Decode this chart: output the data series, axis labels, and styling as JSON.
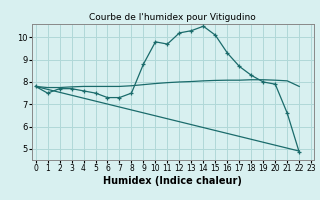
{
  "title": "Courbe de l'humidex pour Vitigudino",
  "xlabel": "Humidex (Indice chaleur)",
  "bg_color": "#d8f0f0",
  "line_color": "#1a6b6b",
  "grid_color": "#b0d8d8",
  "xlim": [
    -0.3,
    23.2
  ],
  "ylim": [
    4.5,
    10.6
  ],
  "xticks": [
    0,
    1,
    2,
    3,
    4,
    5,
    6,
    7,
    8,
    9,
    10,
    11,
    12,
    13,
    14,
    15,
    16,
    17,
    18,
    19,
    20,
    21,
    22,
    23
  ],
  "yticks": [
    5,
    6,
    7,
    8,
    9,
    10
  ],
  "series": [
    {
      "x": [
        0,
        1,
        2,
        3,
        4,
        5,
        6,
        7,
        8,
        9,
        10,
        11,
        12,
        13,
        14,
        15,
        16,
        17,
        18,
        19,
        20,
        21,
        22
      ],
      "y": [
        7.8,
        7.5,
        7.7,
        7.7,
        7.6,
        7.5,
        7.3,
        7.3,
        7.5,
        8.8,
        9.8,
        9.7,
        10.2,
        10.3,
        10.5,
        10.1,
        9.3,
        8.7,
        8.3,
        8.0,
        7.9,
        6.6,
        4.85
      ],
      "marker": true
    },
    {
      "x": [
        0,
        1,
        2,
        3,
        4,
        5,
        6,
        7,
        8,
        9,
        10,
        11,
        12,
        13,
        14,
        15,
        16,
        17,
        18,
        19,
        20,
        21,
        22
      ],
      "y": [
        7.8,
        7.75,
        7.75,
        7.78,
        7.8,
        7.8,
        7.8,
        7.8,
        7.83,
        7.88,
        7.93,
        7.97,
        8.0,
        8.02,
        8.05,
        8.07,
        8.08,
        8.08,
        8.1,
        8.1,
        8.08,
        8.05,
        7.8
      ],
      "marker": false
    },
    {
      "x": [
        0,
        22
      ],
      "y": [
        7.8,
        4.9
      ],
      "marker": false
    }
  ]
}
